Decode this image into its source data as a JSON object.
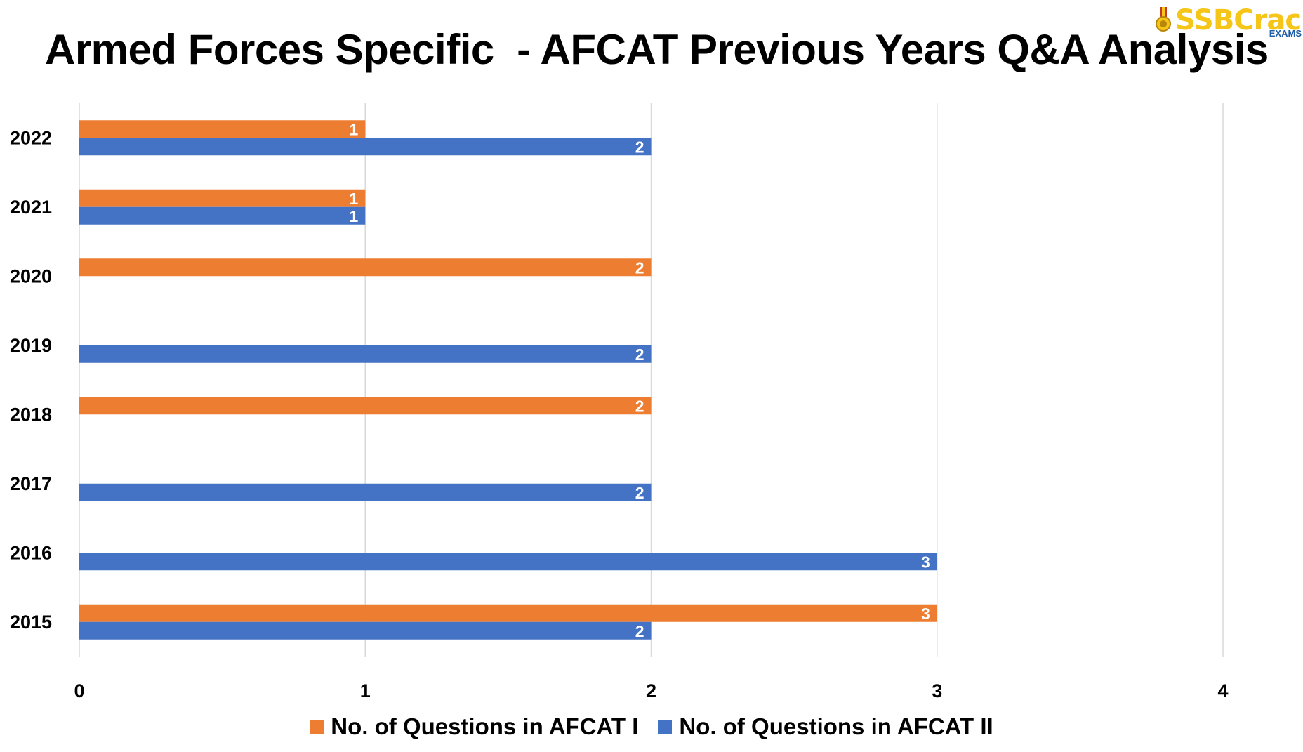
{
  "title": "Armed Forces Specific  - AFCAT Previous Years Q&A Analysis",
  "logo": {
    "name": "SSBCrack",
    "subtitle": "EXAMS"
  },
  "chart_data": {
    "type": "bar",
    "orientation": "horizontal",
    "categories": [
      "2015",
      "2016",
      "2017",
      "2018",
      "2019",
      "2020",
      "2021",
      "2022"
    ],
    "series": [
      {
        "name": "No. of Questions in AFCAT I",
        "color": "#ED7D31",
        "values": [
          3,
          null,
          null,
          2,
          null,
          2,
          1,
          1
        ]
      },
      {
        "name": "No. of Questions in AFCAT II",
        "color": "#4472C4",
        "values": [
          2,
          3,
          2,
          null,
          2,
          null,
          1,
          2
        ]
      }
    ],
    "xlim": [
      0,
      4
    ],
    "xticks": [
      "0",
      "1",
      "2",
      "3",
      "4"
    ],
    "grid": "vertical",
    "data_labels": true,
    "legend": "bottom"
  }
}
